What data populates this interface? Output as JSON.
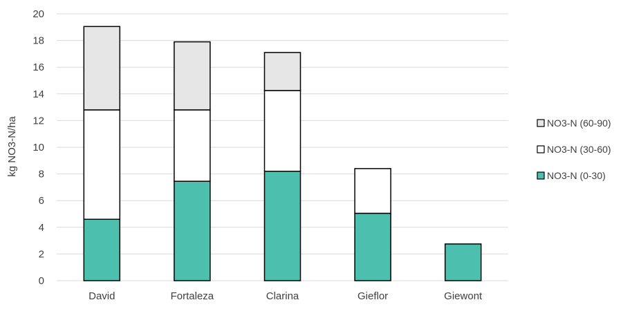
{
  "chart_data": {
    "type": "bar",
    "stacked": true,
    "categories": [
      "David",
      "Fortaleza",
      "Clarina",
      "Gieflor",
      "Giewont"
    ],
    "series": [
      {
        "name": "NO3-N (0-30)",
        "values": [
          4.6,
          7.45,
          8.2,
          5.05,
          2.75
        ],
        "color": "#4DBFAE"
      },
      {
        "name": "NO3-N (30-60)",
        "values": [
          8.2,
          5.35,
          6.05,
          3.35,
          0
        ],
        "color": "#FFFFFF"
      },
      {
        "name": "NO3-N (60-90)",
        "values": [
          6.25,
          5.1,
          2.85,
          0,
          0
        ],
        "color": "#E7E6E6"
      }
    ],
    "legend_order": [
      "NO3-N (60-90)",
      "NO3-N (30-60)",
      "NO3-N (0-30)"
    ],
    "ylabel": "kg NO3-N/ha",
    "xlabel": "",
    "title": "",
    "ylim": [
      0,
      20
    ],
    "yticks": [
      0,
      2,
      4,
      6,
      8,
      10,
      12,
      14,
      16,
      18,
      20
    ],
    "grid": true,
    "legend_position": "right",
    "bar_stroke_color": "#000000",
    "grid_color": "#D9D9D9",
    "text_color": "#404040"
  }
}
